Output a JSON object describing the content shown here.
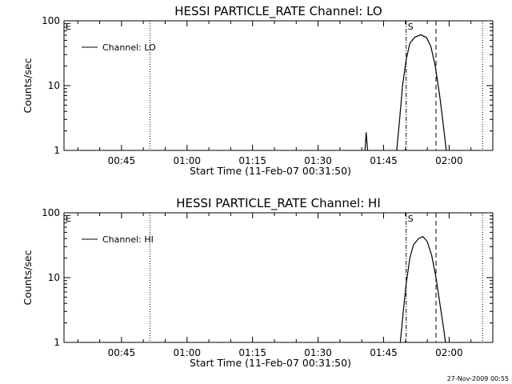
{
  "footer": {
    "timestamp": "27-Nov-2009 00:55"
  },
  "chart_data": [
    {
      "type": "line",
      "title": "HESSI PARTICLE_RATE Channel: LO",
      "xlabel": "Start Time (11-Feb-07 00:31:50)",
      "ylabel": "Counts/sec",
      "yscale": "log",
      "ylim": [
        1,
        100
      ],
      "xlim": [
        "00:31:50",
        "02:10:00"
      ],
      "x_ticks": [
        "00:45",
        "01:00",
        "01:15",
        "01:30",
        "01:45",
        "02:00"
      ],
      "y_ticks": [
        "1",
        "10",
        "100"
      ],
      "legend": {
        "position": "top-left",
        "entries": [
          "Channel: LO"
        ]
      },
      "markers": [
        {
          "label": "E",
          "time": "00:31:50",
          "style": "none"
        },
        {
          "label": "",
          "time": "00:51:30",
          "style": "dotted"
        },
        {
          "label": "S",
          "time": "01:50:10",
          "style": "dash-dot"
        },
        {
          "label": "",
          "time": "01:57:00",
          "style": "dashed"
        },
        {
          "label": "",
          "time": "02:07:40",
          "style": "dotted"
        }
      ],
      "series": [
        {
          "name": "Channel: LO",
          "segments": [
            [
              [
                "01:40:45",
                1.0
              ],
              [
                "01:41:00",
                1.9
              ],
              [
                "01:41:20",
                1.0
              ]
            ],
            [
              [
                "01:48:00",
                1.0
              ],
              [
                "01:48:40",
                3.0
              ],
              [
                "01:49:20",
                10.0
              ],
              [
                "01:50:10",
                25.0
              ],
              [
                "01:51:00",
                45.0
              ],
              [
                "01:52:10",
                56.0
              ],
              [
                "01:53:30",
                61.0
              ],
              [
                "01:54:50",
                55.0
              ],
              [
                "01:55:50",
                40.0
              ],
              [
                "01:56:50",
                20.0
              ],
              [
                "01:57:50",
                7.0
              ],
              [
                "01:58:40",
                2.5
              ],
              [
                "01:59:20",
                1.0
              ]
            ]
          ]
        }
      ]
    },
    {
      "type": "line",
      "title": "HESSI PARTICLE_RATE Channel: HI",
      "xlabel": "Start Time (11-Feb-07 00:31:50)",
      "ylabel": "Counts/sec",
      "yscale": "log",
      "ylim": [
        1,
        100
      ],
      "xlim": [
        "00:31:50",
        "02:10:00"
      ],
      "x_ticks": [
        "00:45",
        "01:00",
        "01:15",
        "01:30",
        "01:45",
        "02:00"
      ],
      "y_ticks": [
        "1",
        "10",
        "100"
      ],
      "legend": {
        "position": "top-left",
        "entries": [
          "Channel: HI"
        ]
      },
      "markers": [
        {
          "label": "E",
          "time": "00:31:50",
          "style": "none"
        },
        {
          "label": "",
          "time": "00:51:30",
          "style": "dotted"
        },
        {
          "label": "S",
          "time": "01:50:10",
          "style": "dash-dot"
        },
        {
          "label": "",
          "time": "01:57:00",
          "style": "dashed"
        },
        {
          "label": "",
          "time": "02:07:40",
          "style": "dotted"
        }
      ],
      "series": [
        {
          "name": "Channel: HI",
          "segments": [
            [
              [
                "01:48:50",
                1.0
              ],
              [
                "01:49:30",
                3.0
              ],
              [
                "01:50:10",
                8.0
              ],
              [
                "01:51:00",
                20.0
              ],
              [
                "01:51:50",
                32.0
              ],
              [
                "01:53:00",
                40.0
              ],
              [
                "01:54:00",
                43.0
              ],
              [
                "01:55:00",
                36.0
              ],
              [
                "01:56:00",
                22.0
              ],
              [
                "01:57:00",
                10.0
              ],
              [
                "01:58:00",
                3.5
              ],
              [
                "01:58:50",
                1.5
              ],
              [
                "01:59:10",
                1.0
              ]
            ]
          ]
        }
      ]
    }
  ]
}
